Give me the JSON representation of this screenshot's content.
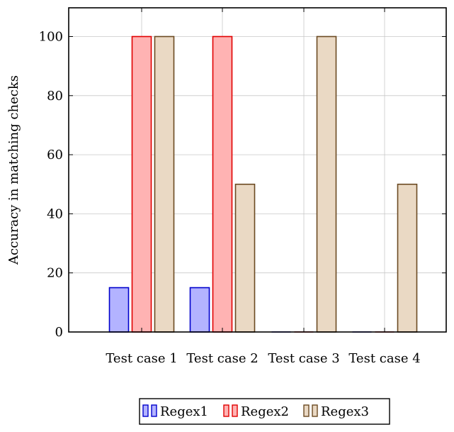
{
  "chart_data": {
    "type": "bar",
    "title": "",
    "xlabel": "",
    "ylabel": "Accuracy in matching checks",
    "categories": [
      "Test case 1",
      "Test case 2",
      "Test case 3",
      "Test case 4"
    ],
    "series": [
      {
        "name": "Regex1",
        "values": [
          15,
          15,
          0,
          0
        ],
        "fill": "#b3b3ff",
        "stroke": "#0000cc"
      },
      {
        "name": "Regex2",
        "values": [
          100,
          100,
          0,
          0
        ],
        "fill": "#ffb3b3",
        "stroke": "#e00000"
      },
      {
        "name": "Regex3",
        "values": [
          100,
          50,
          100,
          50
        ],
        "fill": "#ead9c4",
        "stroke": "#6b4a22"
      }
    ],
    "yticks": [
      0,
      20,
      40,
      60,
      80,
      100
    ],
    "ylim": [
      0,
      110
    ],
    "grid": true,
    "legend_position": "bottom-center"
  }
}
